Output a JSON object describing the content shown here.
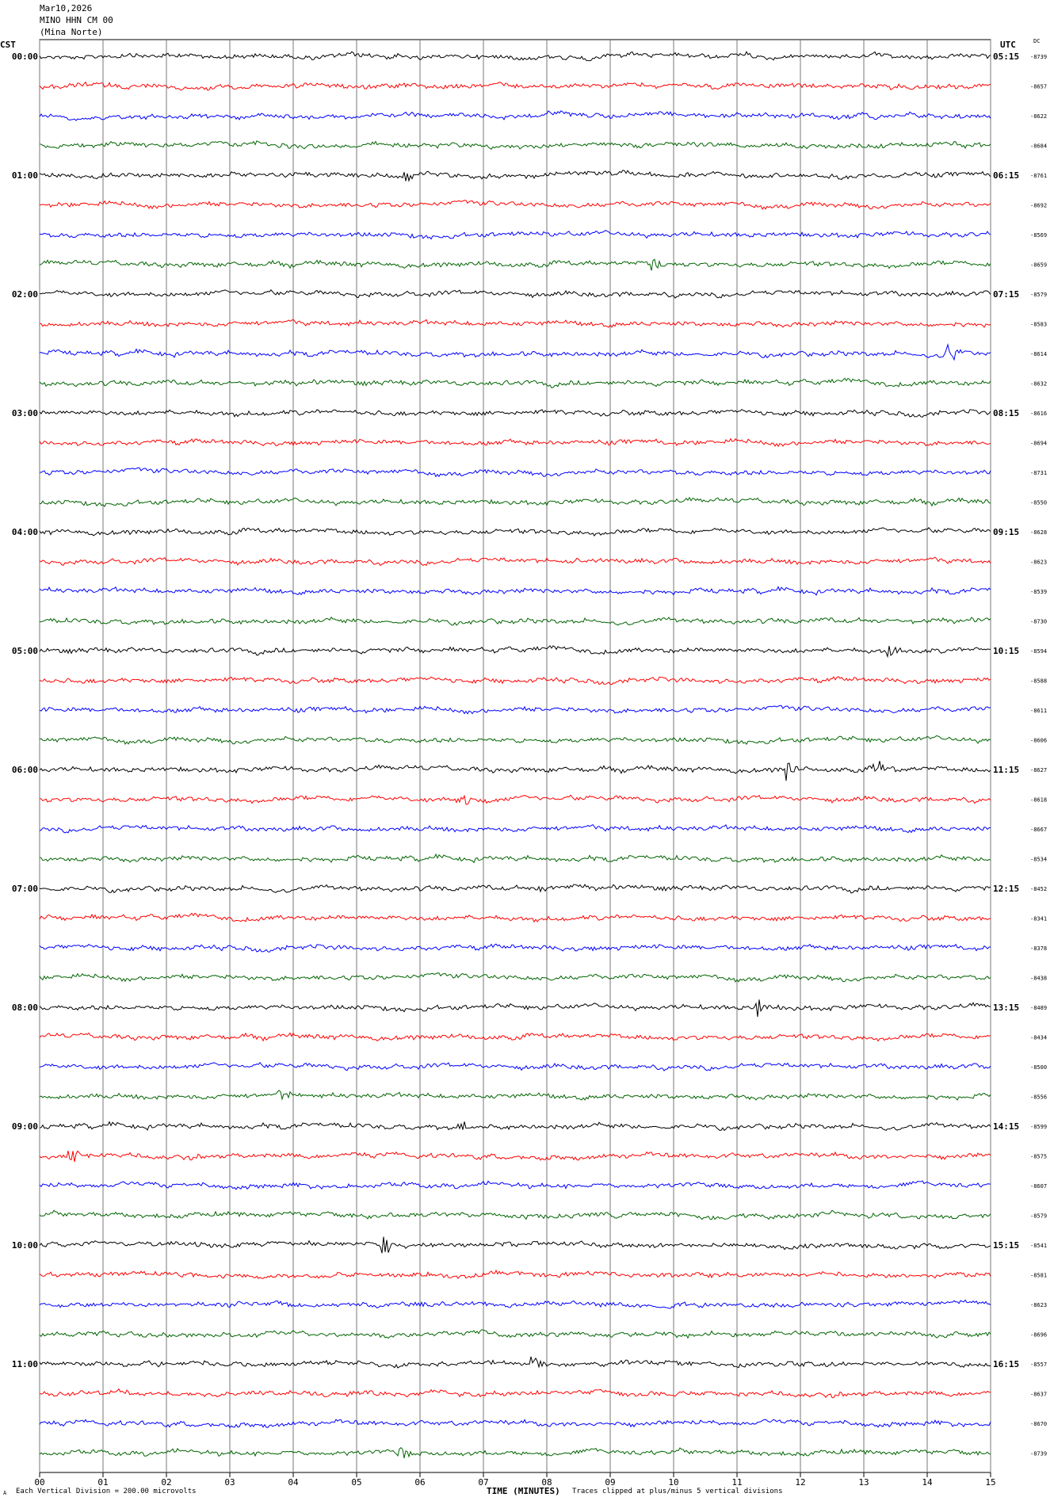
{
  "header": {
    "date": "Mar10,2026",
    "station": "MINO HHN CM 00",
    "location": "(Mina Norte)"
  },
  "left_tz": "CST",
  "right_tz": "UTC",
  "dc_label": "DC",
  "footer": {
    "scale_note": "Each Vertical Division =  200.00 microvolts",
    "clip_note": "Traces clipped at plus/minus 5 vertical divisions",
    "mark": "A"
  },
  "chart_data": {
    "type": "line",
    "xlabel": "TIME (MINUTES)",
    "x_ticks": [
      "00",
      "01",
      "02",
      "03",
      "04",
      "05",
      "06",
      "07",
      "08",
      "09",
      "10",
      "11",
      "12",
      "13",
      "14",
      "15"
    ],
    "xlim": [
      0,
      15
    ],
    "trace_colors": [
      "#000000",
      "#ff0000",
      "#0000ff",
      "#006400"
    ],
    "left_hour_labels": [
      "00:00",
      "01:00",
      "02:00",
      "03:00",
      "04:00",
      "05:00",
      "06:00",
      "07:00",
      "08:00",
      "09:00",
      "10:00",
      "11:00"
    ],
    "right_hour_labels": [
      "05:15",
      "06:15",
      "07:15",
      "08:15",
      "09:15",
      "10:15",
      "11:15",
      "12:15",
      "13:15",
      "14:15",
      "15:15",
      "16:15"
    ],
    "dc_offsets": [
      "-8739",
      "-8657",
      "-8622",
      "-8684",
      "-8761",
      "-8692",
      "-8569",
      "-8659",
      "-8579",
      "-8583",
      "-8614",
      "-8632",
      "-8616",
      "-8694",
      "-8731",
      "-8550",
      "-8628",
      "-8623",
      "-8539",
      "-8730",
      "-8594",
      "-8588",
      "-8611",
      "-8606",
      "-8627",
      "-8618",
      "-8667",
      "-8534",
      "-8452",
      "-8341",
      "-8378",
      "-8438",
      "-8489",
      "-8434",
      "-8500",
      "-8556",
      "-8599",
      "-8575",
      "-8607",
      "-8579",
      "-8541",
      "-8581",
      "-8623",
      "-8696",
      "-8557",
      "-8637",
      "-8670",
      "-8739"
    ],
    "events": [
      {
        "trace": 4,
        "minute": 5.8,
        "amplitude": 0.4
      },
      {
        "trace": 6,
        "minute": 7.6,
        "amplitude": 0.2
      },
      {
        "trace": 7,
        "minute": 9.7,
        "amplitude": 0.5
      },
      {
        "trace": 10,
        "minute": 14.3,
        "amplitude": 1.0
      },
      {
        "trace": 17,
        "minute": 8.5,
        "amplitude": 0.4
      },
      {
        "trace": 20,
        "minute": 13.4,
        "amplitude": 0.5
      },
      {
        "trace": 24,
        "minute": 11.8,
        "amplitude": 0.9
      },
      {
        "trace": 24,
        "minute": 13.2,
        "amplitude": 0.6
      },
      {
        "trace": 25,
        "minute": 6.6,
        "amplitude": 1.0
      },
      {
        "trace": 28,
        "minute": 7.9,
        "amplitude": 0.3
      },
      {
        "trace": 32,
        "minute": 11.3,
        "amplitude": 1.0
      },
      {
        "trace": 35,
        "minute": 3.8,
        "amplitude": 0.4
      },
      {
        "trace": 36,
        "minute": 6.6,
        "amplitude": 0.5
      },
      {
        "trace": 37,
        "minute": 0.5,
        "amplitude": 0.6
      },
      {
        "trace": 40,
        "minute": 5.4,
        "amplitude": 0.9
      },
      {
        "trace": 44,
        "minute": 7.8,
        "amplitude": 0.6
      },
      {
        "trace": 47,
        "minute": 5.7,
        "amplitude": 0.7
      }
    ]
  }
}
